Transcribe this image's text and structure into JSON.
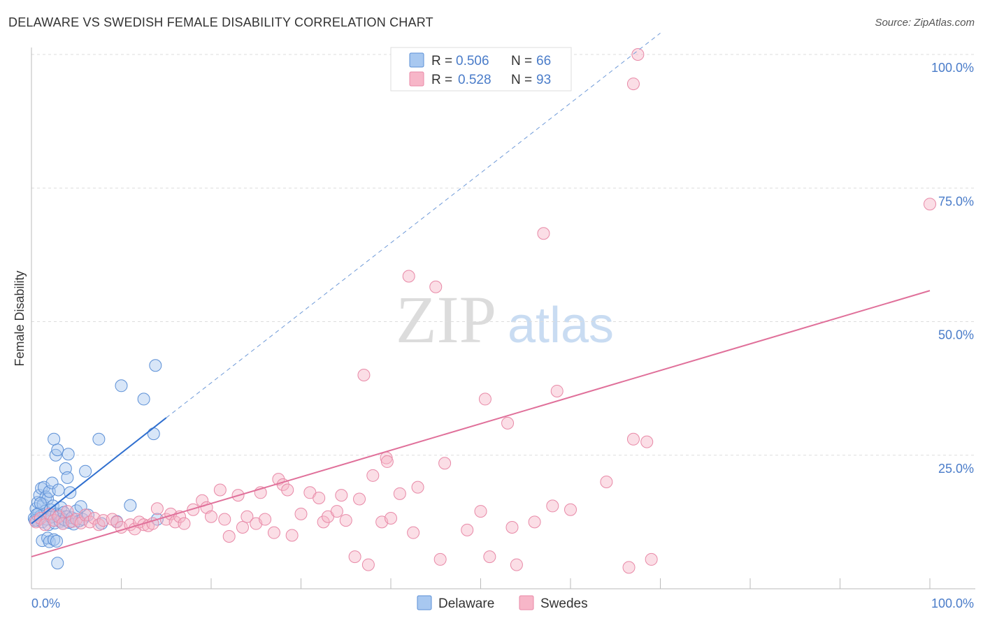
{
  "header": {
    "title": "DELAWARE VS SWEDISH FEMALE DISABILITY CORRELATION CHART",
    "source": "Source: ZipAtlas.com"
  },
  "watermark": {
    "zip": "ZIP",
    "atlas": "atlas"
  },
  "stats_legend": {
    "r_label": "R = ",
    "n_label": "N = ",
    "rows": [
      {
        "series": "Delaware",
        "r": "0.506",
        "n": "66"
      },
      {
        "series": "Swedes",
        "r": "0.528",
        "n": "93"
      }
    ]
  },
  "colors": {
    "delaware_fill": "#a8c8f0",
    "delaware_stroke": "#5b8fd6",
    "delaware_line": "#2f6fcf",
    "swedes_fill": "#f7b6c8",
    "swedes_stroke": "#e889a7",
    "swedes_line": "#e0709a",
    "tick_text": "#4a7cc9",
    "grid": "#dddddd"
  },
  "chart_data": {
    "type": "scatter",
    "title": "DELAWARE VS SWEDISH FEMALE DISABILITY CORRELATION CHART",
    "xlabel": "",
    "ylabel": "Female Disability",
    "xlim": [
      0,
      100
    ],
    "ylim": [
      0,
      100
    ],
    "x_tick_labels": [
      "0.0%",
      "100.0%"
    ],
    "y_ticks": [
      {
        "value": 25,
        "label": "25.0%"
      },
      {
        "value": 50,
        "label": "50.0%"
      },
      {
        "value": 75,
        "label": "75.0%"
      },
      {
        "value": 100,
        "label": "100.0%"
      }
    ],
    "grid": true,
    "legend_position": "bottom-center",
    "series": [
      {
        "name": "Delaware",
        "r": 0.506,
        "n": 66,
        "trend": {
          "x0": 0,
          "y0": 12.2,
          "x1": 15,
          "y1": 32.0,
          "dashed_to_x": 70,
          "dashed_to_y": 104.0
        },
        "points": [
          [
            0.3,
            13.2
          ],
          [
            0.5,
            15.0
          ],
          [
            0.6,
            12.8
          ],
          [
            0.7,
            16.2
          ],
          [
            0.8,
            14.1
          ],
          [
            0.9,
            17.5
          ],
          [
            1.0,
            13.6
          ],
          [
            1.1,
            18.8
          ],
          [
            1.2,
            12.5
          ],
          [
            1.3,
            15.8
          ],
          [
            1.4,
            19.0
          ],
          [
            1.5,
            14.5
          ],
          [
            1.6,
            17.2
          ],
          [
            1.7,
            13.0
          ],
          [
            1.8,
            16.8
          ],
          [
            1.9,
            12.0
          ],
          [
            2.0,
            18.2
          ],
          [
            2.1,
            14.8
          ],
          [
            2.2,
            13.4
          ],
          [
            2.3,
            19.8
          ],
          [
            2.4,
            15.5
          ],
          [
            2.5,
            28.0
          ],
          [
            2.6,
            12.3
          ],
          [
            2.7,
            25.0
          ],
          [
            2.8,
            14.0
          ],
          [
            2.9,
            26.0
          ],
          [
            3.0,
            18.5
          ],
          [
            3.1,
            13.8
          ],
          [
            3.2,
            12.6
          ],
          [
            3.3,
            15.2
          ],
          [
            3.4,
            13.1
          ],
          [
            3.5,
            12.2
          ],
          [
            3.6,
            14.3
          ],
          [
            3.7,
            12.9
          ],
          [
            3.8,
            22.5
          ],
          [
            3.9,
            13.5
          ],
          [
            4.0,
            20.8
          ],
          [
            4.1,
            25.2
          ],
          [
            4.2,
            12.4
          ],
          [
            4.3,
            18.0
          ],
          [
            4.5,
            13.3
          ],
          [
            4.7,
            12.1
          ],
          [
            5.0,
            14.6
          ],
          [
            5.3,
            12.7
          ],
          [
            5.5,
            15.4
          ],
          [
            5.7,
            13.0
          ],
          [
            6.0,
            22.0
          ],
          [
            6.3,
            13.8
          ],
          [
            7.5,
            28.0
          ],
          [
            7.8,
            12.2
          ],
          [
            9.5,
            12.6
          ],
          [
            10.0,
            38.0
          ],
          [
            11.0,
            15.6
          ],
          [
            12.5,
            35.5
          ],
          [
            13.6,
            29.0
          ],
          [
            13.8,
            41.8
          ],
          [
            14.0,
            13.0
          ],
          [
            1.2,
            9.0
          ],
          [
            1.8,
            9.5
          ],
          [
            2.0,
            8.8
          ],
          [
            2.5,
            9.2
          ],
          [
            2.8,
            8.9
          ],
          [
            2.9,
            4.8
          ],
          [
            0.4,
            12.8
          ],
          [
            0.6,
            13.9
          ],
          [
            1.0,
            16.0
          ]
        ]
      },
      {
        "name": "Swedes",
        "r": 0.528,
        "n": 93,
        "trend": {
          "x0": 0,
          "y0": 6.0,
          "x1": 100,
          "y1": 55.8
        },
        "points": [
          [
            0.5,
            12.5
          ],
          [
            1.0,
            13.2
          ],
          [
            1.5,
            12.0
          ],
          [
            2.0,
            14.0
          ],
          [
            2.5,
            12.8
          ],
          [
            3.0,
            13.5
          ],
          [
            3.5,
            12.2
          ],
          [
            4.0,
            14.5
          ],
          [
            4.5,
            12.6
          ],
          [
            5.0,
            13.0
          ],
          [
            5.5,
            12.3
          ],
          [
            6.0,
            13.8
          ],
          [
            6.5,
            12.5
          ],
          [
            7.0,
            13.2
          ],
          [
            7.5,
            12.0
          ],
          [
            8.0,
            12.8
          ],
          [
            9.0,
            13.0
          ],
          [
            9.5,
            12.5
          ],
          [
            10.0,
            11.5
          ],
          [
            11.0,
            12.0
          ],
          [
            11.5,
            11.2
          ],
          [
            12.0,
            12.5
          ],
          [
            12.5,
            12.0
          ],
          [
            13.0,
            11.8
          ],
          [
            13.5,
            12.2
          ],
          [
            14.0,
            15.0
          ],
          [
            15.0,
            13.0
          ],
          [
            15.5,
            14.0
          ],
          [
            16.0,
            12.5
          ],
          [
            16.5,
            13.5
          ],
          [
            17.0,
            12.2
          ],
          [
            18.0,
            14.8
          ],
          [
            19.0,
            16.5
          ],
          [
            19.5,
            15.2
          ],
          [
            20.0,
            13.5
          ],
          [
            21.0,
            18.5
          ],
          [
            21.5,
            13.0
          ],
          [
            22.0,
            9.8
          ],
          [
            23.0,
            17.5
          ],
          [
            23.5,
            11.5
          ],
          [
            24.0,
            13.5
          ],
          [
            25.0,
            12.2
          ],
          [
            25.5,
            18.0
          ],
          [
            26.0,
            13.0
          ],
          [
            27.0,
            10.5
          ],
          [
            27.5,
            20.5
          ],
          [
            28.0,
            19.5
          ],
          [
            28.5,
            18.5
          ],
          [
            29.0,
            10.0
          ],
          [
            30.0,
            14.0
          ],
          [
            31.0,
            18.0
          ],
          [
            32.0,
            17.0
          ],
          [
            32.5,
            12.5
          ],
          [
            33.0,
            13.5
          ],
          [
            34.0,
            14.5
          ],
          [
            34.5,
            17.5
          ],
          [
            35.0,
            12.8
          ],
          [
            36.0,
            6.0
          ],
          [
            36.5,
            16.8
          ],
          [
            37.0,
            40.0
          ],
          [
            37.5,
            4.5
          ],
          [
            38.0,
            21.2
          ],
          [
            39.0,
            12.5
          ],
          [
            39.5,
            24.5
          ],
          [
            39.6,
            23.8
          ],
          [
            40.0,
            13.2
          ],
          [
            41.0,
            17.8
          ],
          [
            42.0,
            58.5
          ],
          [
            42.5,
            10.5
          ],
          [
            43.0,
            19.0
          ],
          [
            45.0,
            56.5
          ],
          [
            45.5,
            5.5
          ],
          [
            46.0,
            23.5
          ],
          [
            48.5,
            11.0
          ],
          [
            50.0,
            14.5
          ],
          [
            50.5,
            35.5
          ],
          [
            51.0,
            6.0
          ],
          [
            53.0,
            31.0
          ],
          [
            53.5,
            11.5
          ],
          [
            54.0,
            4.5
          ],
          [
            56.0,
            12.5
          ],
          [
            57.0,
            66.5
          ],
          [
            58.0,
            15.5
          ],
          [
            58.5,
            37.0
          ],
          [
            60.0,
            14.8
          ],
          [
            64.0,
            20.0
          ],
          [
            67.0,
            28.0
          ],
          [
            68.5,
            27.5
          ],
          [
            69.0,
            5.5
          ],
          [
            66.5,
            4.0
          ],
          [
            67.0,
            94.5
          ],
          [
            67.5,
            100.0
          ],
          [
            100.0,
            72.0
          ]
        ]
      }
    ]
  },
  "bottom_legend": {
    "items": [
      "Delaware",
      "Swedes"
    ]
  }
}
